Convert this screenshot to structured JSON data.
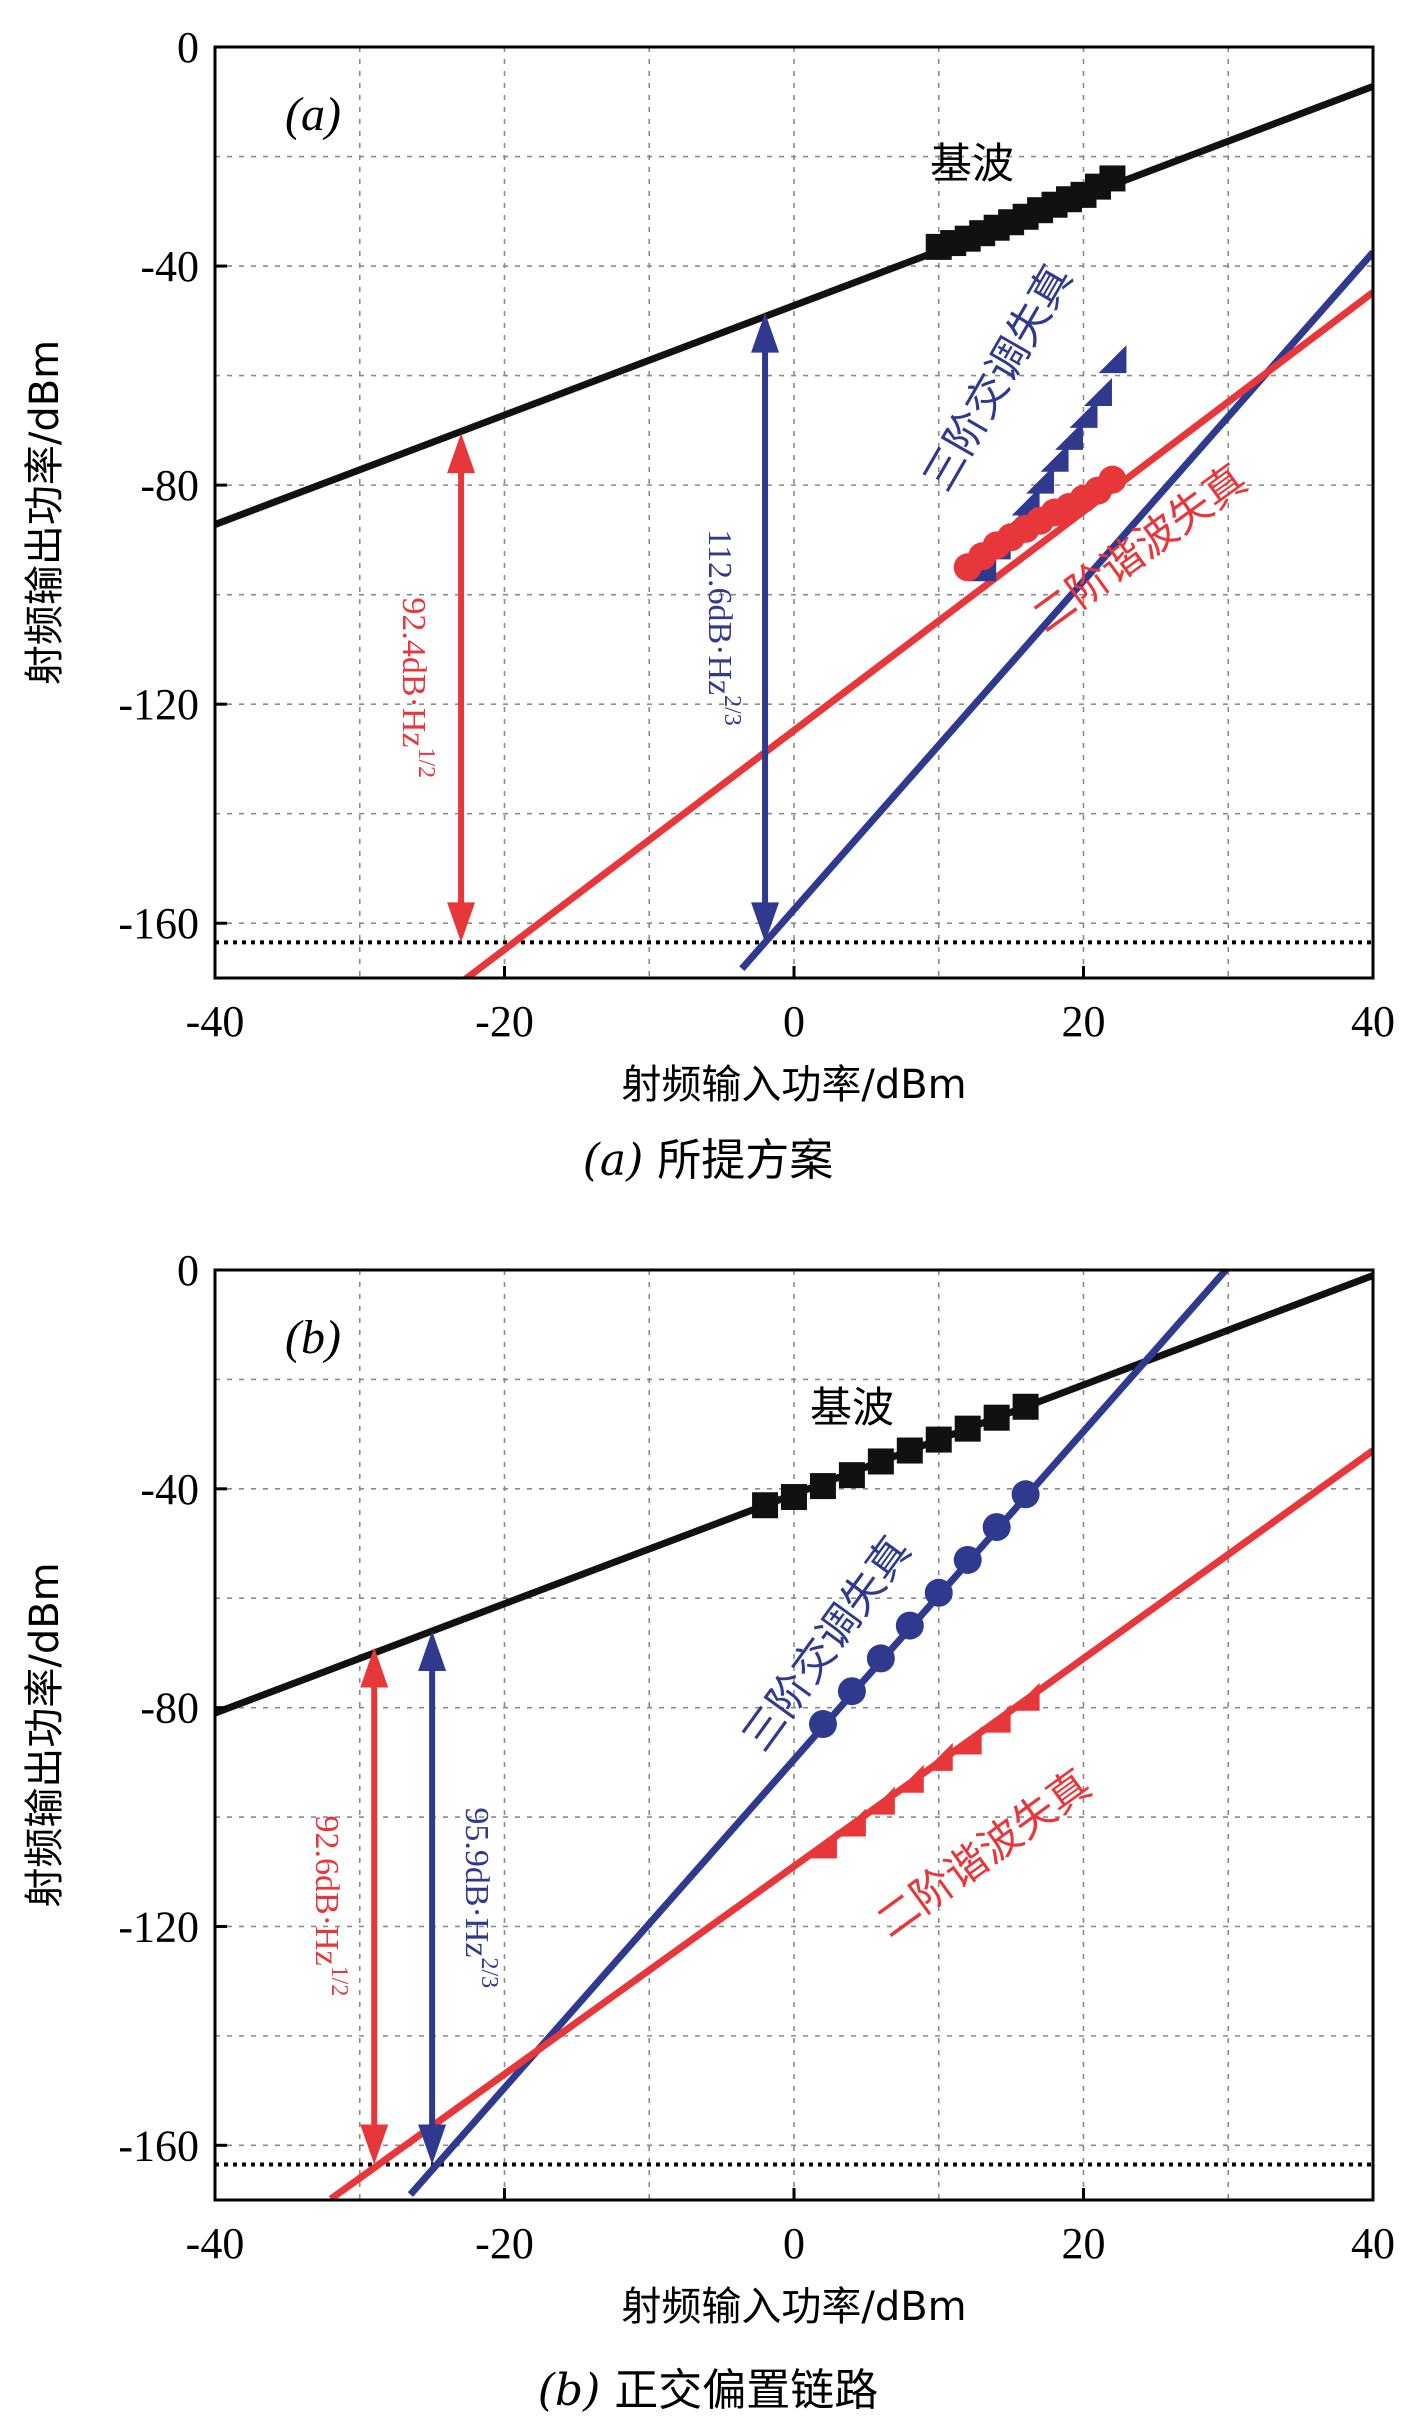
{
  "colors": {
    "fundamental": "#111111",
    "imd3": "#2f3a8f",
    "hd2": "#e8373a",
    "grid": "#8a8a8a"
  },
  "chart_data": [
    {
      "type": "line",
      "panel_label": "(a)",
      "caption_prefix": "(a)",
      "caption_text": "所提方案",
      "xlabel": "射频输入功率/dBm",
      "ylabel": "射频输出功率/dBm",
      "xlim": [
        -40,
        40
      ],
      "ylim": [
        -170,
        0
      ],
      "xticks": [
        -40,
        -20,
        0,
        20,
        40
      ],
      "yticks": [
        0,
        -40,
        -80,
        -120,
        -160
      ],
      "xtick_labels": [
        "-40",
        "-20",
        "0",
        "20",
        "40"
      ],
      "ytick_labels": [
        "0",
        "-40",
        "-80",
        "-120",
        "-160"
      ],
      "grid": true,
      "noise_floor": -163.5,
      "series": [
        {
          "name": "基波",
          "key": "fundamental",
          "marker": "square",
          "slope": 1,
          "intercept": -47.2,
          "line_x": [
            -40,
            40
          ],
          "x": [
            10,
            11,
            12,
            13,
            14,
            15,
            16,
            17,
            18,
            19,
            20,
            21,
            22
          ],
          "y": [
            -36.5,
            -35.8,
            -35,
            -34,
            -33,
            -32,
            -31,
            -29.8,
            -28.8,
            -27.8,
            -27,
            -25.5,
            -24
          ]
        },
        {
          "name": "三阶交调失真",
          "key": "imd3",
          "marker": "triangle",
          "slope": 3,
          "intercept": -157.5,
          "line_x": [
            -3.6,
            40
          ],
          "x": [
            13,
            14,
            15,
            16,
            17,
            18,
            19,
            20,
            21,
            22
          ],
          "y": [
            -95,
            -91,
            -87,
            -83,
            -79,
            -75,
            -71,
            -67,
            -63,
            -57
          ]
        },
        {
          "name": "二阶谐波失真",
          "key": "hd2",
          "marker": "circle",
          "slope": 2,
          "intercept": -124.8,
          "line_x": [
            -27.6,
            40
          ],
          "x": [
            12,
            13,
            14,
            15,
            16,
            17,
            18,
            19,
            20,
            21,
            22
          ],
          "y": [
            -95,
            -93,
            -91,
            -89.5,
            -88,
            -86.5,
            -85,
            -84,
            -82.5,
            -81,
            -79
          ]
        }
      ],
      "annotations": [
        {
          "key": "hd2",
          "x": -23,
          "y1": -70.5,
          "y2": -163.5,
          "text": "92.4dB·Hz",
          "sup": "1/2"
        },
        {
          "key": "imd3",
          "x": -2,
          "y1": -48.5,
          "y2": -163.5,
          "text": "112.6dB·Hz",
          "sup": "2/3"
        }
      ]
    },
    {
      "type": "line",
      "panel_label": "(b)",
      "caption_prefix": "(b)",
      "caption_text": "正交偏置链路",
      "xlabel": "射频输入功率/dBm",
      "ylabel": "射频输出功率/dBm",
      "xlim": [
        -40,
        40
      ],
      "ylim": [
        -170,
        0
      ],
      "xticks": [
        -40,
        -20,
        0,
        20,
        40
      ],
      "yticks": [
        0,
        -40,
        -80,
        -120,
        -160
      ],
      "xtick_labels": [
        "-40",
        "-20",
        "0",
        "20",
        "40"
      ],
      "ytick_labels": [
        "0",
        "-40",
        "-80",
        "-120",
        "-160"
      ],
      "grid": true,
      "noise_floor": -163.5,
      "series": [
        {
          "name": "基波",
          "key": "fundamental",
          "marker": "square",
          "slope": 1,
          "intercept": -41,
          "line_x": [
            -40,
            40
          ],
          "x": [
            -2,
            0,
            2,
            4,
            6,
            8,
            10,
            12,
            14,
            16
          ],
          "y": [
            -43,
            -41.5,
            -39.5,
            -37.5,
            -35,
            -33,
            -31,
            -29,
            -27,
            -25
          ]
        },
        {
          "name": "三阶交调失真",
          "key": "imd3",
          "marker": "circle",
          "slope": 3,
          "intercept": -89.5,
          "line_x": [
            -26.5,
            30
          ],
          "x": [
            2,
            4,
            6,
            8,
            10,
            12,
            14,
            16
          ],
          "y": [
            -83,
            -77,
            -71,
            -65,
            -59,
            -53,
            -47,
            -41
          ]
        },
        {
          "name": "二阶谐波失真",
          "key": "hd2",
          "marker": "triangle",
          "slope": 1.9,
          "intercept": -109,
          "line_x": [
            -32,
            40
          ],
          "x": [
            2,
            4,
            6,
            8,
            10,
            12,
            14,
            16
          ],
          "y": [
            -105,
            -101,
            -97,
            -93,
            -89,
            -86,
            -82,
            -78
          ]
        }
      ],
      "annotations": [
        {
          "key": "hd2",
          "x": -29,
          "y1": -69,
          "y2": -163.5,
          "text": "92.6dB·Hz",
          "sup": "1/2"
        },
        {
          "key": "imd3",
          "x": -25,
          "y1": -66,
          "y2": -163.5,
          "text": "95.9dB·Hz",
          "sup": "2/3"
        }
      ]
    }
  ]
}
